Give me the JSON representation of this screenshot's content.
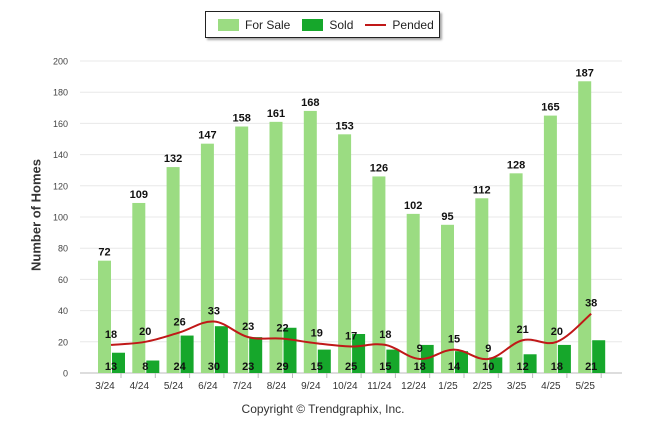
{
  "legend": {
    "for_sale": "For Sale",
    "sold": "Sold",
    "pended": "Pended"
  },
  "copyright": "Copyright © Trendgraphix, Inc.",
  "colors": {
    "for_sale": "#9bdc82",
    "sold": "#16a72b",
    "pended": "#c01818",
    "grid": "#e8e8e8"
  },
  "chart_data": {
    "type": "bar",
    "ylabel": "Number of Homes",
    "xlabel": "",
    "ylim": [
      0,
      200
    ],
    "yticks": [
      0,
      20,
      40,
      60,
      80,
      100,
      120,
      140,
      160,
      180,
      200
    ],
    "grid": true,
    "legend_position": "top-center",
    "categories": [
      "3/24",
      "4/24",
      "5/24",
      "6/24",
      "7/24",
      "8/24",
      "9/24",
      "10/24",
      "11/24",
      "12/24",
      "1/25",
      "2/25",
      "3/25",
      "4/25",
      "5/25"
    ],
    "series": [
      {
        "name": "For Sale",
        "type": "bar",
        "values": [
          72,
          109,
          132,
          147,
          158,
          161,
          168,
          153,
          126,
          102,
          95,
          112,
          128,
          165,
          187
        ]
      },
      {
        "name": "Sold",
        "type": "bar",
        "values": [
          13,
          8,
          24,
          30,
          23,
          29,
          15,
          25,
          15,
          18,
          14,
          10,
          12,
          18,
          21
        ]
      },
      {
        "name": "Pended",
        "type": "line",
        "values": [
          18,
          20,
          26,
          33,
          23,
          22,
          19,
          17,
          18,
          9,
          15,
          9,
          21,
          20,
          38
        ]
      }
    ]
  }
}
